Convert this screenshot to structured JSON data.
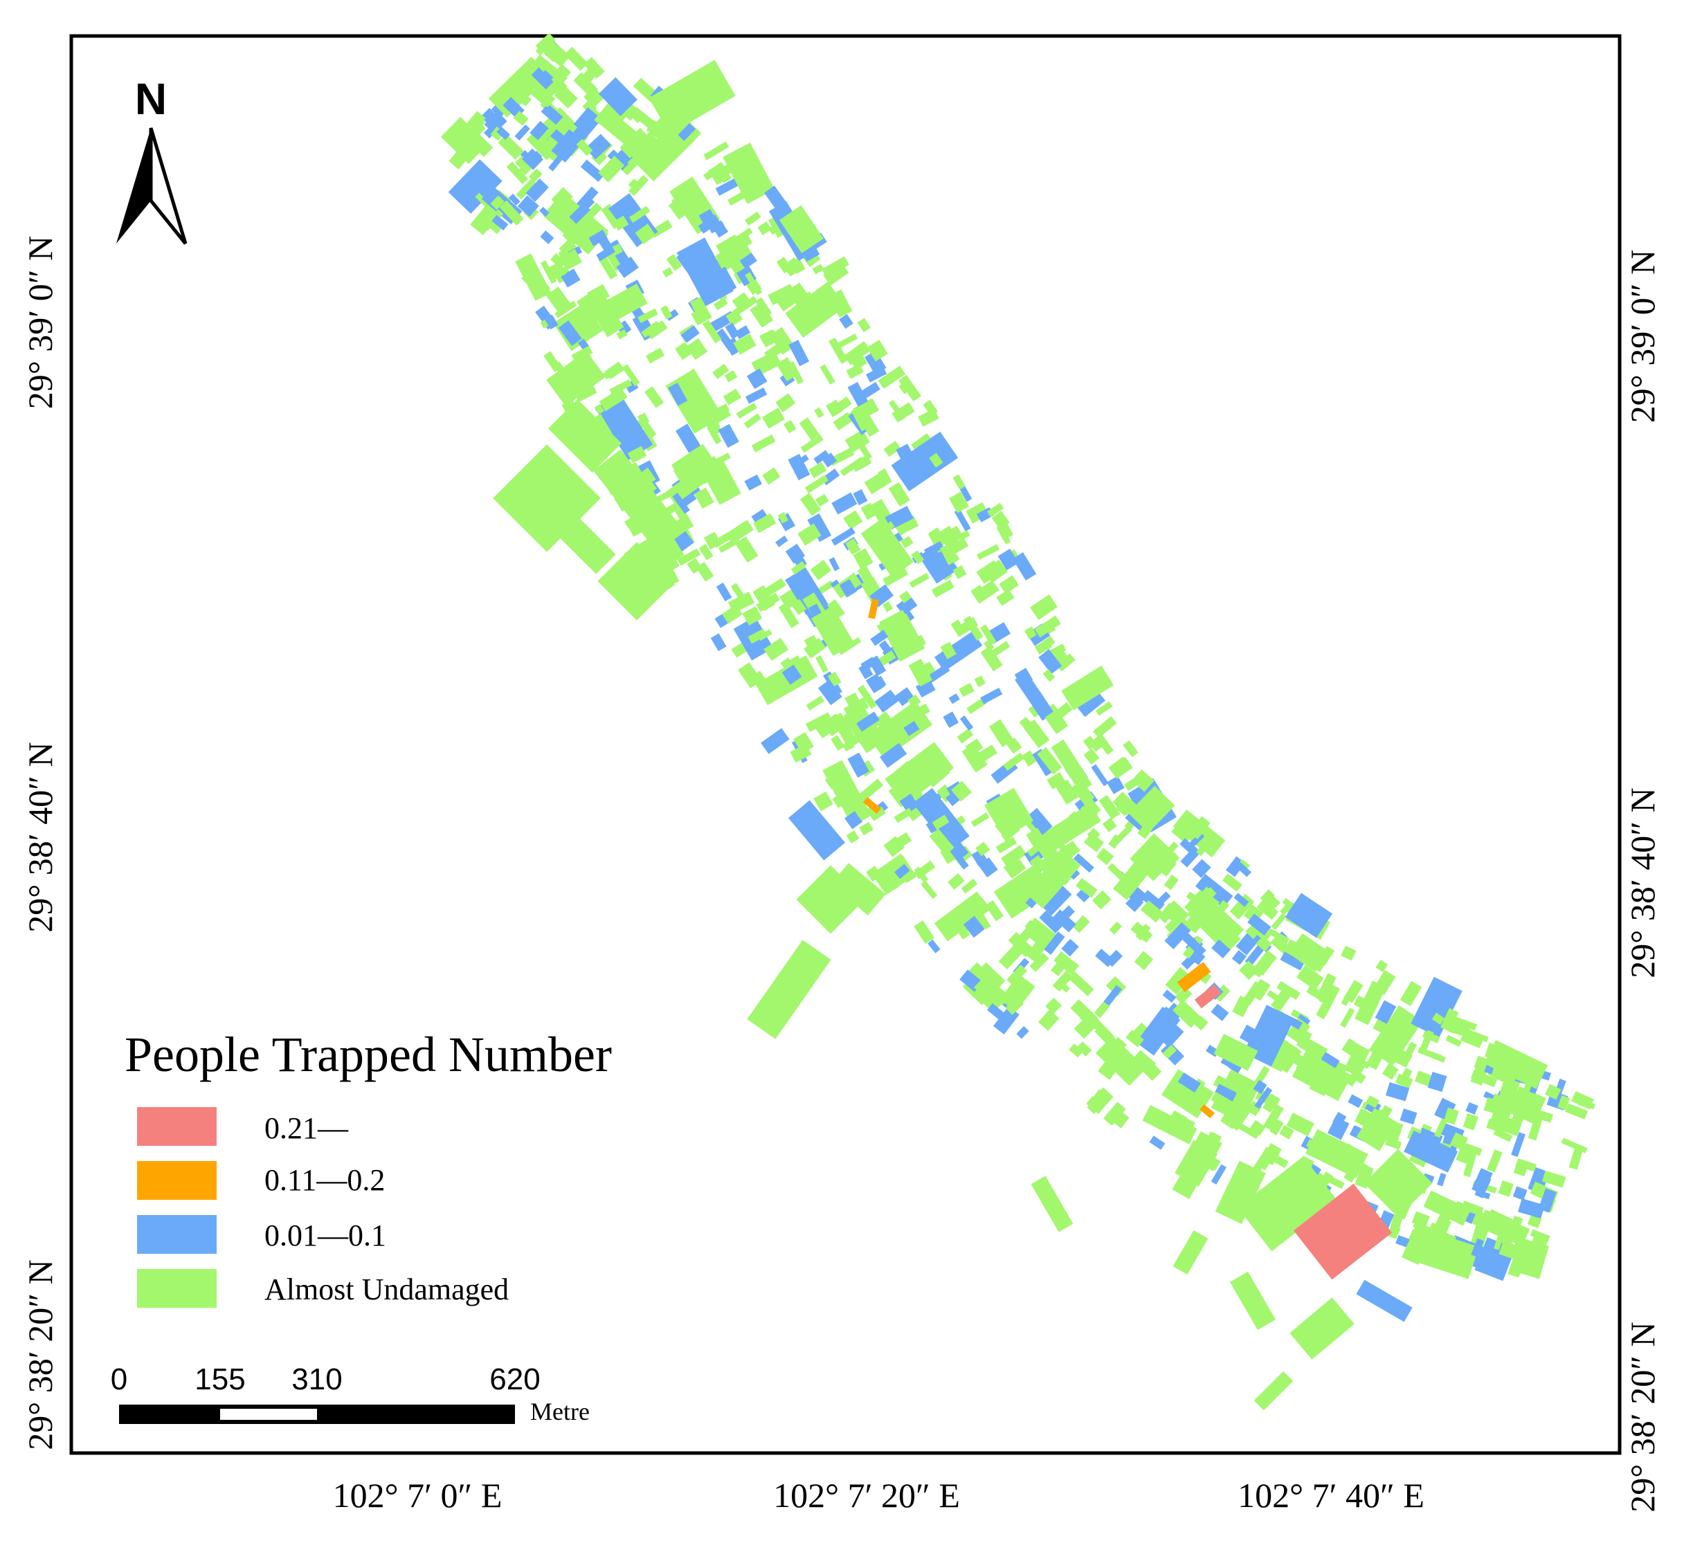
{
  "map": {
    "legend": {
      "title": "People Trapped Number",
      "classes": [
        {
          "label": "0.21—",
          "color": "#f5817f"
        },
        {
          "label": "0.11—0.2",
          "color": "#ffa500"
        },
        {
          "label": "0.01—0.1",
          "color": "#6aaaf8"
        },
        {
          "label": "Almost Undamaged",
          "color": "#a3f76d"
        }
      ]
    },
    "north_arrow": {
      "label": "N"
    },
    "scale_bar": {
      "ticks": [
        "0",
        "155",
        "310",
        "620"
      ],
      "unit": "Metre"
    },
    "graticule": {
      "longitude_labels": [
        "102° 7′ 0″ E",
        "102° 7′ 20″ E",
        "102° 7′ 40″ E"
      ],
      "latitude_labels": [
        "29° 39′ 0″ N",
        "29° 38′ 40″ N",
        "29° 38′ 20″ N"
      ]
    },
    "colors": {
      "frame": "#000000",
      "background": "#ffffff",
      "high": "#f5817f",
      "medium": "#ffa500",
      "low": "#6aaaf8",
      "undamaged": "#a3f76d"
    }
  }
}
